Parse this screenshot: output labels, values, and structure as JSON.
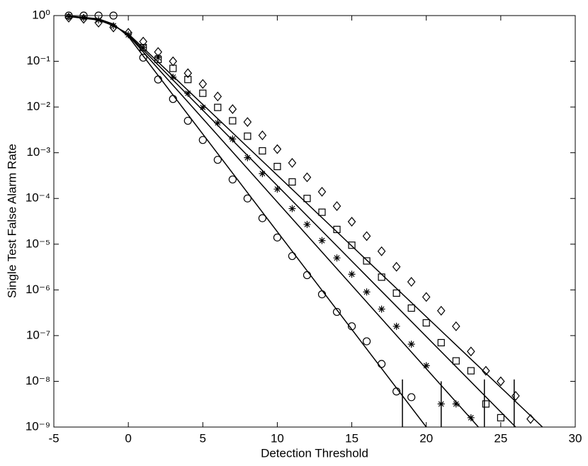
{
  "chart_data": {
    "type": "scatter",
    "log_y": true,
    "x_label": "Detection Threshold",
    "y_label": "Single Test False Alarm Rate",
    "xlim": [
      -5,
      30
    ],
    "xticks": [
      -5,
      0,
      5,
      10,
      15,
      20,
      25,
      30
    ],
    "ylim": [
      1e-09,
      1
    ],
    "yticks": [
      {
        "value": 1,
        "label": "10⁰"
      },
      {
        "value": 0.1,
        "label": "10⁻¹"
      },
      {
        "value": 0.01,
        "label": "10⁻²"
      },
      {
        "value": 0.001,
        "label": "10⁻³"
      },
      {
        "value": 0.0001,
        "label": "10⁻⁴"
      },
      {
        "value": 1e-05,
        "label": "10⁻⁵"
      },
      {
        "value": 1e-06,
        "label": "10⁻⁶"
      },
      {
        "value": 1e-07,
        "label": "10⁻⁷"
      },
      {
        "value": 1e-08,
        "label": "10⁻⁸"
      },
      {
        "value": 1e-09,
        "label": "10⁻⁹"
      }
    ],
    "series": [
      {
        "marker": "circle",
        "color": "#000000",
        "x": [
          -4,
          -3,
          -2,
          -1,
          1,
          2,
          3,
          4,
          5,
          6,
          7,
          8,
          9,
          10,
          11,
          12,
          13,
          14,
          15,
          16,
          17,
          18,
          19
        ],
        "values": [
          1,
          1,
          1,
          1,
          0.12,
          0.04,
          0.015,
          0.005,
          0.0019,
          0.0007,
          0.00026,
          0.0001,
          3.7e-05,
          1.4e-05,
          5.5e-06,
          2.1e-06,
          8e-07,
          3.3e-07,
          1.6e-07,
          7.5e-08,
          2.4e-08,
          6e-09,
          4.5e-09
        ],
        "fit_x": [
          -4,
          -2,
          -1,
          0,
          20
        ],
        "fit_values": [
          0.98,
          0.85,
          0.65,
          0.35,
          1e-09
        ]
      },
      {
        "marker": "asterisk",
        "color": "#000000",
        "x": [
          -4,
          -3,
          -2,
          -1,
          0,
          1,
          2,
          3,
          4,
          5,
          6,
          7,
          8,
          9,
          10,
          11,
          12,
          13,
          14,
          15,
          16,
          17,
          18,
          19,
          20,
          21,
          22,
          23
        ],
        "values": [
          0.95,
          0.9,
          0.8,
          0.6,
          0.38,
          0.2,
          0.12,
          0.045,
          0.02,
          0.0098,
          0.0045,
          0.002,
          0.00078,
          0.00035,
          0.00016,
          6e-05,
          2.7e-05,
          1.2e-05,
          5e-06,
          2.2e-06,
          9e-07,
          3.8e-07,
          1.6e-07,
          6.5e-08,
          2.2e-08,
          3.2e-09,
          3.2e-09,
          1.6e-09
        ],
        "fit_x": [
          -4,
          -2,
          -1,
          0,
          23.5
        ],
        "fit_values": [
          0.97,
          0.83,
          0.63,
          0.37,
          1e-09
        ]
      },
      {
        "marker": "square",
        "color": "#000000",
        "x": [
          1,
          2,
          3,
          4,
          5,
          6,
          7,
          8,
          9,
          10,
          11,
          12,
          13,
          14,
          15,
          16,
          17,
          18,
          19,
          20,
          21,
          22,
          23,
          24,
          25
        ],
        "values": [
          0.2,
          0.11,
          0.07,
          0.04,
          0.02,
          0.0098,
          0.005,
          0.0023,
          0.0011,
          0.0005,
          0.00023,
          0.0001,
          5e-05,
          2.1e-05,
          9.5e-06,
          4.3e-06,
          1.9e-06,
          8.5e-07,
          4e-07,
          1.9e-07,
          7e-08,
          2.8e-08,
          1.7e-08,
          3.2e-09,
          1.6e-09
        ],
        "fit_x": [
          -4,
          -2,
          -1,
          0,
          26
        ],
        "fit_values": [
          0.96,
          0.82,
          0.62,
          0.38,
          1e-09
        ]
      },
      {
        "marker": "diamond",
        "color": "#000000",
        "x": [
          -4,
          -3,
          -2,
          -1,
          0,
          1,
          2,
          3,
          4,
          5,
          6,
          7,
          8,
          9,
          10,
          11,
          12,
          13,
          14,
          15,
          16,
          17,
          18,
          19,
          20,
          21,
          22,
          23,
          24,
          25,
          26,
          27
        ],
        "values": [
          0.9,
          0.85,
          0.7,
          0.55,
          0.42,
          0.27,
          0.16,
          0.1,
          0.055,
          0.032,
          0.017,
          0.009,
          0.0047,
          0.0024,
          0.0012,
          0.0006,
          0.00029,
          0.00014,
          6.8e-05,
          3.1e-05,
          1.5e-05,
          7e-06,
          3.2e-06,
          1.5e-06,
          7e-07,
          3.5e-07,
          1.6e-07,
          4.5e-08,
          1.7e-08,
          1e-08,
          4.8e-09,
          1.5e-09
        ],
        "fit_x": [
          -4,
          -2,
          -1,
          0,
          27.8
        ],
        "fit_values": [
          0.95,
          0.8,
          0.6,
          0.4,
          1e-09
        ]
      }
    ],
    "error_bars": {
      "x": [
        18.4,
        21,
        23.9,
        25.9
      ],
      "high": [
        1.1e-08,
        1e-08,
        1.1e-08,
        1.1e-08
      ],
      "low": [
        1e-09,
        1e-09,
        1e-09,
        1e-09
      ]
    }
  }
}
